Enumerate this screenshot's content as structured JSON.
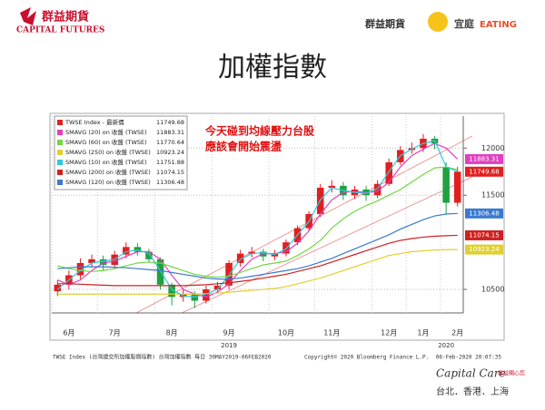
{
  "header": {
    "left_brand": "群益期貨",
    "left_brand_en": "CAPITAL FUTURES",
    "right_brand": "群益期貨",
    "right_name": "宜庭",
    "right_name_en": "EATING"
  },
  "title": "加權指數",
  "chart_data": {
    "type": "candlestick",
    "categories": [
      null,
      "6月",
      null,
      null,
      null,
      "7月",
      null,
      null,
      null,
      null,
      "8月",
      null,
      null,
      null,
      null,
      "9月",
      null,
      null,
      null,
      null,
      "10月",
      null,
      null,
      null,
      "11月",
      null,
      null,
      null,
      null,
      "12月",
      null,
      null,
      "1月",
      null,
      null,
      "2月"
    ],
    "year_categories": [
      null,
      null,
      null,
      null,
      null,
      null,
      null,
      null,
      null,
      null,
      null,
      null,
      null,
      null,
      null,
      "2019",
      null,
      null,
      null,
      null,
      null,
      null,
      null,
      null,
      null,
      null,
      null,
      null,
      null,
      null,
      null,
      null,
      null,
      null,
      "2020",
      null
    ],
    "price": {
      "name": "TWSE Index - 最新價",
      "up_color": "#e02020",
      "down_color": "#20a040",
      "axis_label": true,
      "label_color": "#e02020",
      "open": [
        10480,
        10550,
        10650,
        10780,
        10820,
        10760,
        10870,
        10950,
        10900,
        10820,
        10550,
        10420,
        10450,
        10380,
        10500,
        10540,
        10780,
        10880,
        10900,
        10850,
        10880,
        11000,
        11150,
        11300,
        11580,
        11600,
        11500,
        11560,
        11500,
        11620,
        11850,
        11980,
        12000,
        12100,
        11800,
        11420
      ],
      "high": [
        10600,
        10700,
        10830,
        10870,
        10860,
        10910,
        11000,
        10990,
        10930,
        10840,
        10570,
        10500,
        10480,
        10540,
        10580,
        10810,
        10920,
        10950,
        10930,
        10920,
        11030,
        11180,
        11330,
        11620,
        11660,
        11640,
        11600,
        11600,
        11660,
        11890,
        12020,
        12060,
        12150,
        12130,
        11850,
        11800
      ],
      "low": [
        10430,
        10500,
        10610,
        10730,
        10700,
        10720,
        10830,
        10860,
        10790,
        10500,
        10330,
        10370,
        10300,
        10350,
        10460,
        10500,
        10740,
        10840,
        10800,
        10810,
        10850,
        10970,
        11120,
        11270,
        11530,
        11450,
        11460,
        11440,
        11470,
        11600,
        11820,
        11940,
        11960,
        11990,
        11300,
        11380
      ],
      "close": [
        10550,
        10650,
        10780,
        10820,
        10760,
        10870,
        10950,
        10900,
        10820,
        10550,
        10420,
        10450,
        10380,
        10500,
        10540,
        10780,
        10880,
        10900,
        10850,
        10880,
        11000,
        11150,
        11300,
        11580,
        11600,
        11500,
        11560,
        11500,
        11620,
        11850,
        11980,
        12000,
        12100,
        12050,
        11420,
        11749.68
      ]
    },
    "series": [
      {
        "name": "SMAVG (20)  on 收盤 (TWSE)",
        "color": "#e040c0",
        "axis_label": true,
        "values": [
          10600,
          10550,
          10600,
          10700,
          10780,
          10800,
          10850,
          10900,
          10900,
          10820,
          10650,
          10500,
          10450,
          10420,
          10470,
          10560,
          10700,
          10820,
          10880,
          10880,
          10900,
          10990,
          11120,
          11300,
          11450,
          11530,
          11540,
          11530,
          11540,
          11640,
          11800,
          11920,
          11990,
          12050,
          12000,
          11883.31
        ]
      },
      {
        "name": "SMAVG (60)  on 收盤 (TWSE)",
        "color": "#70d840",
        "axis_label": false,
        "values": [
          10750,
          10720,
          10700,
          10690,
          10700,
          10720,
          10750,
          10780,
          10790,
          10780,
          10740,
          10700,
          10660,
          10640,
          10630,
          10640,
          10680,
          10720,
          10760,
          10780,
          10800,
          10860,
          10930,
          11020,
          11150,
          11250,
          11330,
          11390,
          11440,
          11500,
          11560,
          11640,
          11720,
          11790,
          11800,
          11770.64
        ]
      },
      {
        "name": "SMAVG (250)  on 收盤 (TWSE)",
        "color": "#e0d030",
        "axis_label": true,
        "values": [
          10450,
          10450,
          10450,
          10450,
          10450,
          10450,
          10450,
          10450,
          10450,
          10450,
          10450,
          10450,
          10450,
          10455,
          10460,
          10470,
          10480,
          10490,
          10500,
          10510,
          10530,
          10560,
          10590,
          10620,
          10660,
          10700,
          10740,
          10780,
          10820,
          10860,
          10880,
          10900,
          10910,
          10918,
          10922,
          10923.24
        ]
      },
      {
        "name": "SMAVG (10)  on 收盤 (TWSE)",
        "color": "#30c8e0",
        "axis_label": false,
        "values": [
          10500,
          10600,
          10700,
          10780,
          10800,
          10820,
          10900,
          10920,
          10880,
          10700,
          10500,
          10430,
          10420,
          10450,
          10500,
          10650,
          10820,
          10880,
          10890,
          10870,
          10930,
          11080,
          11220,
          11450,
          11580,
          11550,
          11530,
          11520,
          11570,
          11750,
          11920,
          11990,
          12050,
          12080,
          11800,
          11751.88
        ]
      },
      {
        "name": "SMAVG (200)  on 收盤 (TWSE)",
        "color": "#d02020",
        "axis_label": true,
        "values": [
          10560,
          10560,
          10555,
          10550,
          10545,
          10540,
          10540,
          10540,
          10540,
          10540,
          10540,
          10540,
          10545,
          10550,
          10560,
          10570,
          10585,
          10600,
          10620,
          10640,
          10660,
          10690,
          10720,
          10750,
          10790,
          10830,
          10870,
          10910,
          10950,
          10990,
          11020,
          11040,
          11055,
          11065,
          11070,
          11074.15
        ]
      },
      {
        "name": "SMAVG (120)  on 收盤 (TWSE)",
        "color": "#3a7ad0",
        "axis_label": true,
        "values": [
          10720,
          10730,
          10740,
          10740,
          10740,
          10735,
          10730,
          10720,
          10710,
          10700,
          10680,
          10660,
          10640,
          10620,
          10610,
          10610,
          10620,
          10640,
          10660,
          10680,
          10700,
          10720,
          10750,
          10790,
          10830,
          10880,
          10930,
          10980,
          11030,
          11080,
          11140,
          11190,
          11240,
          11280,
          11300,
          11306.48
        ]
      }
    ],
    "ylim": [
      10250,
      12340
    ],
    "yticks": [
      10500,
      11500,
      12000
    ],
    "grid": true,
    "annotation": [
      "今天碰到均線壓力台股",
      "應該會開始震盪"
    ]
  },
  "footer": {
    "source": "TWSE Index (台灣證交所加權股價指數) 台灣加權指數  每日 30MAY2019-06FEB2020",
    "copyright": "Copyright© 2020 Bloomberg Finance L.P.",
    "timestamp": "06-Feb-2020 20:07:35",
    "care_logo": "Capital Care",
    "care_tagline": "群益關心您",
    "cities": "台北．香港．上海"
  }
}
